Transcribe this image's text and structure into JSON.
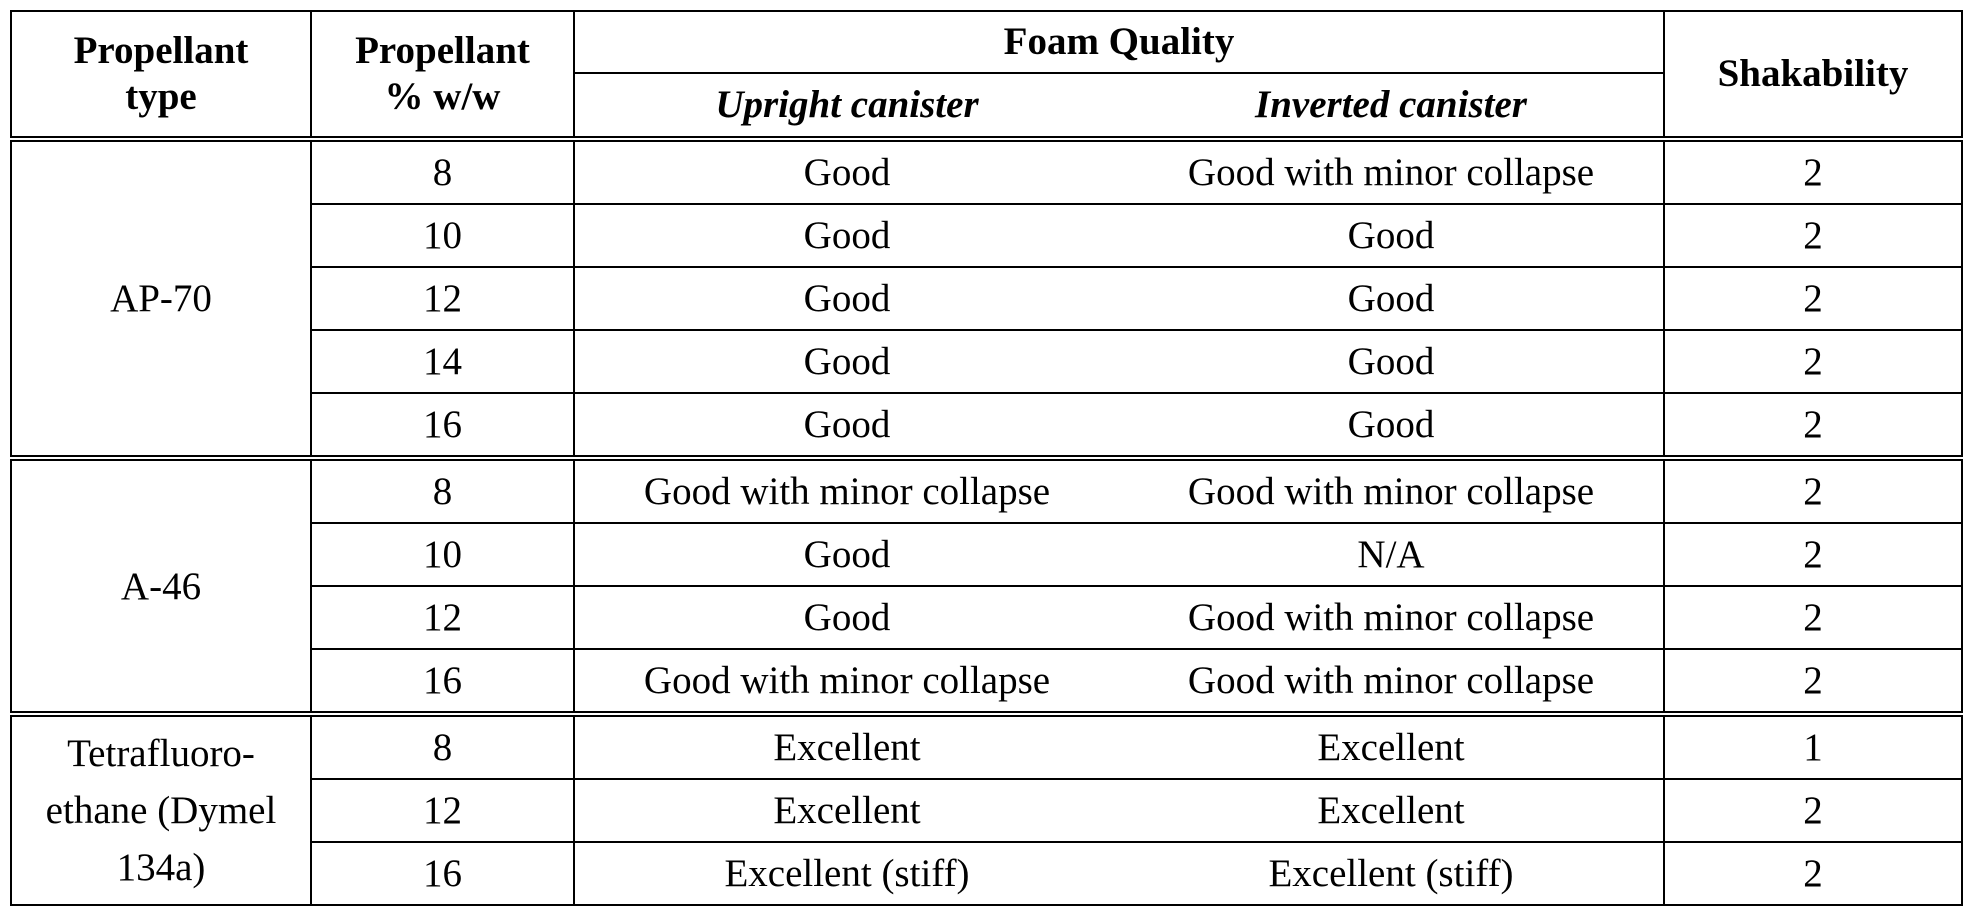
{
  "header": {
    "propellant_type": "Propellant type",
    "propellant_ww": "Propellant % w/w",
    "foam_quality": "Foam Quality",
    "upright": "Upright canister",
    "inverted": "Inverted canister",
    "shakability": "Shakability"
  },
  "groups": [
    {
      "type": "AP-70",
      "rows": [
        {
          "pct": "8",
          "upright": "Good",
          "inverted": "Good with minor collapse",
          "shake": "2"
        },
        {
          "pct": "10",
          "upright": "Good",
          "inverted": "Good",
          "shake": "2"
        },
        {
          "pct": "12",
          "upright": "Good",
          "inverted": "Good",
          "shake": "2"
        },
        {
          "pct": "14",
          "upright": "Good",
          "inverted": "Good",
          "shake": "2"
        },
        {
          "pct": "16",
          "upright": "Good",
          "inverted": "Good",
          "shake": "2"
        }
      ]
    },
    {
      "type": "A-46",
      "rows": [
        {
          "pct": "8",
          "upright": "Good with minor collapse",
          "inverted": "Good with minor collapse",
          "shake": "2"
        },
        {
          "pct": "10",
          "upright": "Good",
          "inverted": "N/A",
          "shake": "2"
        },
        {
          "pct": "12",
          "upright": "Good",
          "inverted": "Good with minor collapse",
          "shake": "2"
        },
        {
          "pct": "16",
          "upright": "Good with minor collapse",
          "inverted": "Good with minor collapse",
          "shake": "2"
        }
      ]
    },
    {
      "type": "Tetrafluoro- ethane (Dymel 134a)",
      "rows": [
        {
          "pct": "8",
          "upright": "Excellent",
          "inverted": "Excellent",
          "shake": "1"
        },
        {
          "pct": "12",
          "upright": "Excellent",
          "inverted": "Excellent",
          "shake": "2"
        },
        {
          "pct": "16",
          "upright": "Excellent (stiff)",
          "inverted": "Excellent (stiff)",
          "shake": "2"
        }
      ]
    }
  ]
}
